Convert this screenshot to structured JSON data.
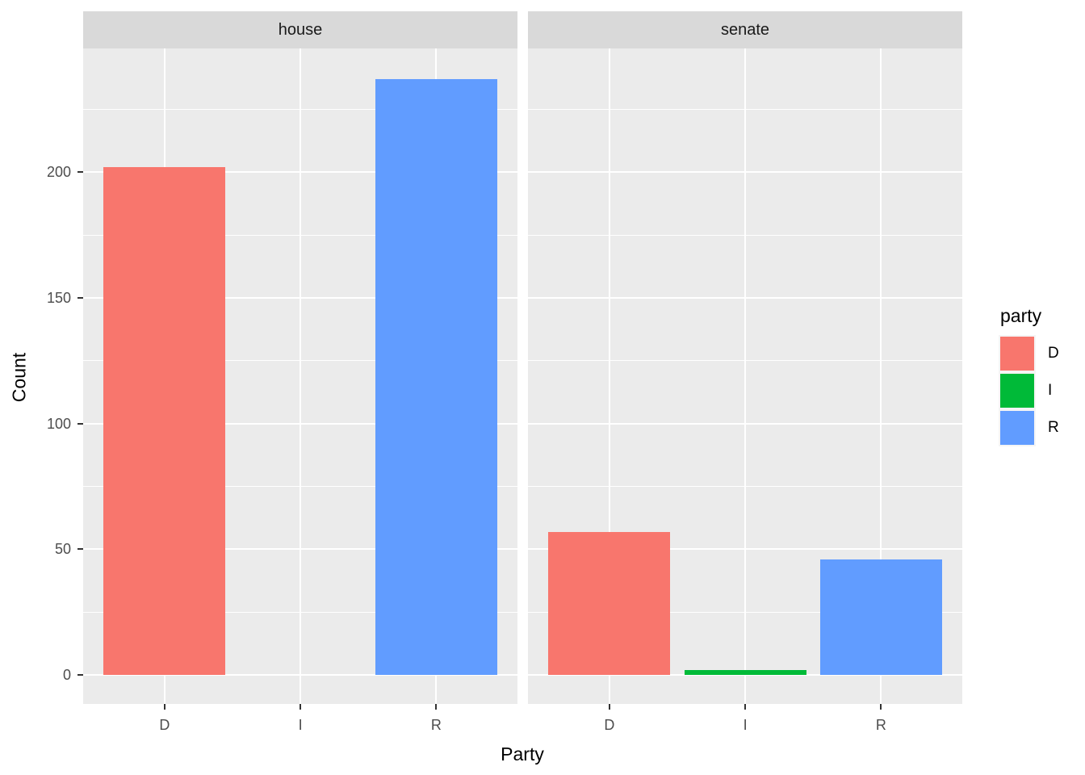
{
  "chart_data": {
    "type": "bar",
    "faceted": true,
    "facet_titles": [
      "house",
      "senate"
    ],
    "categories": [
      "D",
      "I",
      "R"
    ],
    "series": [
      {
        "name": "house",
        "values": [
          202,
          0,
          237
        ]
      },
      {
        "name": "senate",
        "values": [
          57,
          2,
          46
        ]
      }
    ],
    "title": "",
    "xlabel": "Party",
    "ylabel": "Count",
    "yticks": [
      0,
      50,
      100,
      150,
      200
    ],
    "minor_yticks": [
      25,
      75,
      125,
      175,
      225
    ],
    "ylim": [
      0,
      249
    ],
    "grid": true,
    "legend_position": "right",
    "legend_title": "party",
    "legend_entries": [
      {
        "label": "D",
        "color": "#f8766d"
      },
      {
        "label": "I",
        "color": "#00ba38"
      },
      {
        "label": "R",
        "color": "#619cff"
      }
    ],
    "colors": {
      "panel_background": "#ebebeb",
      "strip_background": "#d9d9d9",
      "strip_text": "#1a1a1a",
      "grid": "#ffffff",
      "tick_label": "#4d4d4d",
      "tick_mark": "#333333",
      "axis_title": "#000000",
      "figure_background": "#ffffff"
    }
  }
}
